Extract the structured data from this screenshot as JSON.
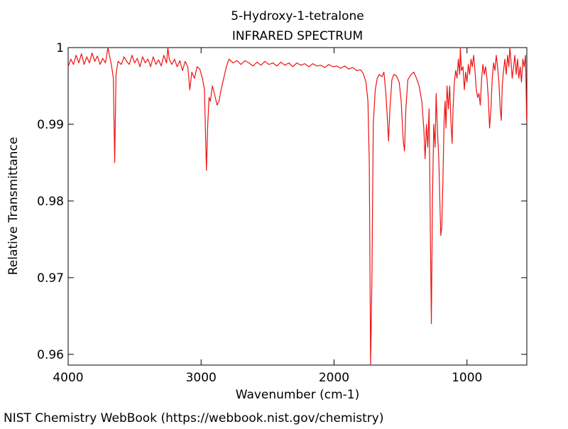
{
  "chart_data": {
    "type": "line",
    "title": "5-Hydroxy-1-tetralone",
    "subtitle": "INFRARED SPECTRUM",
    "x_label": "Wavenumber (cm-1)",
    "y_label": "Relative Transmittance",
    "source": "NIST Chemistry WebBook (https://webbook.nist.gov/chemistry)",
    "color": "#ee1111",
    "xlim": [
      4000,
      550
    ],
    "ylim": [
      0.9586,
      1
    ],
    "xticks": [
      4000,
      3000,
      2000,
      1000
    ],
    "yticks": [
      1,
      0.99,
      0.98,
      0.97,
      0.96
    ],
    "x": [
      4000,
      3980,
      3960,
      3940,
      3920,
      3900,
      3880,
      3860,
      3840,
      3820,
      3800,
      3780,
      3760,
      3740,
      3720,
      3700,
      3690,
      3675,
      3660,
      3650,
      3640,
      3625,
      3600,
      3580,
      3560,
      3540,
      3520,
      3500,
      3480,
      3460,
      3440,
      3420,
      3400,
      3380,
      3360,
      3340,
      3320,
      3300,
      3280,
      3260,
      3250,
      3240,
      3220,
      3200,
      3180,
      3160,
      3140,
      3120,
      3100,
      3085,
      3070,
      3050,
      3030,
      3010,
      2990,
      2975,
      2960,
      2950,
      2940,
      2930,
      2915,
      2900,
      2880,
      2865,
      2850,
      2830,
      2810,
      2790,
      2760,
      2730,
      2700,
      2670,
      2640,
      2610,
      2580,
      2550,
      2520,
      2490,
      2460,
      2430,
      2400,
      2370,
      2340,
      2310,
      2280,
      2250,
      2220,
      2190,
      2160,
      2130,
      2100,
      2070,
      2040,
      2010,
      1980,
      1950,
      1920,
      1890,
      1860,
      1830,
      1800,
      1780,
      1760,
      1745,
      1735,
      1725,
      1715,
      1705,
      1690,
      1675,
      1660,
      1640,
      1625,
      1610,
      1600,
      1590,
      1580,
      1565,
      1550,
      1530,
      1510,
      1495,
      1480,
      1470,
      1460,
      1445,
      1420,
      1400,
      1380,
      1360,
      1340,
      1325,
      1315,
      1305,
      1295,
      1285,
      1275,
      1268,
      1260,
      1250,
      1240,
      1232,
      1222,
      1212,
      1205,
      1197,
      1190,
      1182,
      1172,
      1165,
      1158,
      1150,
      1140,
      1130,
      1120,
      1112,
      1105,
      1095,
      1085,
      1075,
      1065,
      1055,
      1050,
      1042,
      1030,
      1020,
      1010,
      1000,
      990,
      980,
      970,
      960,
      950,
      940,
      930,
      920,
      910,
      900,
      890,
      880,
      870,
      860,
      850,
      840,
      830,
      820,
      810,
      800,
      790,
      780,
      770,
      760,
      750,
      742,
      735,
      725,
      715,
      705,
      695,
      685,
      678,
      670,
      660,
      650,
      640,
      630,
      620,
      610,
      600,
      590,
      580,
      570,
      560,
      555,
      552
    ],
    "values": [
      0.9975,
      0.9985,
      0.9978,
      0.999,
      0.998,
      0.9992,
      0.9978,
      0.9988,
      0.998,
      0.9993,
      0.9982,
      0.9989,
      0.9978,
      0.9986,
      0.998,
      1,
      0.999,
      0.9978,
      0.996,
      0.985,
      0.9965,
      0.9982,
      0.9978,
      0.9988,
      0.9982,
      0.9978,
      0.999,
      0.998,
      0.9986,
      0.9975,
      0.9988,
      0.998,
      0.9985,
      0.9975,
      0.9988,
      0.9978,
      0.9984,
      0.9976,
      0.999,
      0.998,
      1,
      0.9985,
      0.9978,
      0.9985,
      0.9975,
      0.9983,
      0.997,
      0.9982,
      0.9975,
      0.9945,
      0.9968,
      0.996,
      0.9975,
      0.9972,
      0.996,
      0.9945,
      0.984,
      0.99,
      0.9935,
      0.993,
      0.995,
      0.994,
      0.9925,
      0.993,
      0.9945,
      0.996,
      0.9975,
      0.9985,
      0.998,
      0.9983,
      0.9978,
      0.9983,
      0.998,
      0.9976,
      0.9981,
      0.9977,
      0.9982,
      0.9978,
      0.998,
      0.9976,
      0.9981,
      0.9977,
      0.998,
      0.9975,
      0.998,
      0.9977,
      0.9979,
      0.9975,
      0.9979,
      0.9976,
      0.9977,
      0.9974,
      0.9978,
      0.9975,
      0.9976,
      0.9973,
      0.9976,
      0.9972,
      0.9974,
      0.997,
      0.9971,
      0.9966,
      0.9955,
      0.993,
      0.985,
      0.9586,
      0.97,
      0.99,
      0.9945,
      0.996,
      0.9965,
      0.9962,
      0.9968,
      0.994,
      0.991,
      0.9878,
      0.992,
      0.9958,
      0.9965,
      0.9963,
      0.9955,
      0.993,
      0.988,
      0.9865,
      0.992,
      0.9958,
      0.9965,
      0.9968,
      0.996,
      0.995,
      0.993,
      0.9895,
      0.9855,
      0.99,
      0.987,
      0.992,
      0.975,
      0.964,
      0.98,
      0.99,
      0.987,
      0.994,
      0.989,
      0.9855,
      0.9805,
      0.9755,
      0.9765,
      0.982,
      0.9905,
      0.993,
      0.9895,
      0.995,
      0.992,
      0.995,
      0.99,
      0.9875,
      0.992,
      0.9955,
      0.997,
      0.996,
      0.9985,
      0.9965,
      1,
      0.997,
      0.9975,
      0.9945,
      0.9968,
      0.9955,
      0.9978,
      0.9965,
      0.9985,
      0.9975,
      0.999,
      0.997,
      0.9945,
      0.9935,
      0.994,
      0.9925,
      0.996,
      0.9978,
      0.9965,
      0.9975,
      0.996,
      0.9935,
      0.9895,
      0.992,
      0.996,
      0.998,
      0.997,
      0.999,
      0.9975,
      0.9955,
      0.992,
      0.9905,
      0.995,
      0.997,
      0.9985,
      0.9965,
      0.999,
      0.9975,
      1,
      0.9985,
      0.996,
      0.9975,
      0.999,
      0.9965,
      0.9985,
      0.996,
      0.9975,
      0.9955,
      0.9985,
      0.9975,
      0.999,
      0.9945,
      0.9905
    ]
  }
}
